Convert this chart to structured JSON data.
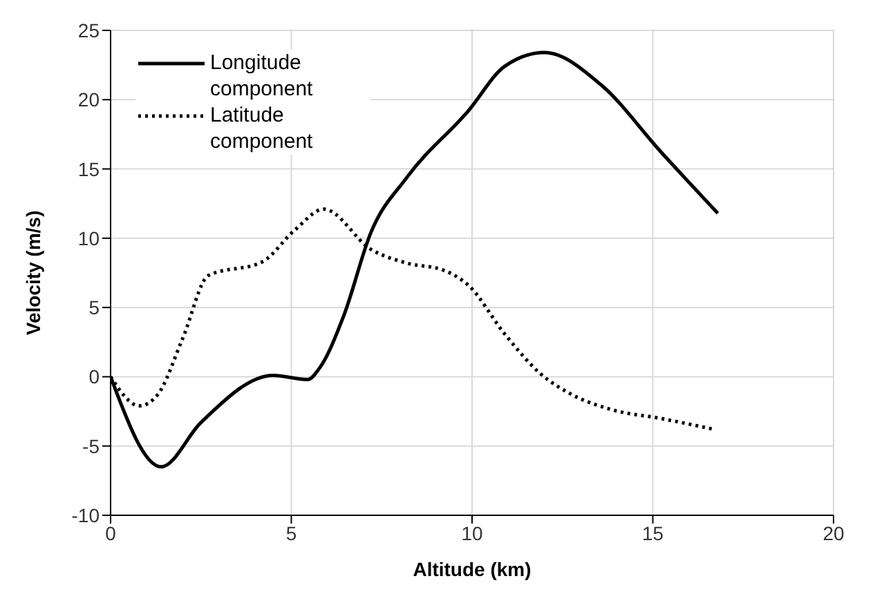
{
  "chart_data": {
    "type": "line",
    "xlabel": "Altitude (km)",
    "ylabel": "Velocity (m/s)",
    "xlim": [
      0,
      20
    ],
    "xticks": [
      0,
      5,
      10,
      15,
      20
    ],
    "ylim": [
      -10,
      25
    ],
    "yticks": [
      -10,
      -5,
      0,
      5,
      10,
      15,
      20,
      25
    ],
    "grid": true,
    "legend": "top left",
    "marker": "none",
    "series": [
      {
        "name": "Longitude component",
        "color": "#000000",
        "line_style": "solid",
        "x": [
          0,
          1.4,
          2.5,
          4.5,
          5.45,
          5.8,
          6.45,
          7.2,
          8.2,
          9.9,
          10.9,
          12.0,
          13.6,
          15.2,
          16.8
        ],
        "values": [
          0,
          -6.5,
          -3.3,
          0.1,
          -0.2,
          0.7,
          4.4,
          10.4,
          14.4,
          19.2,
          22.4,
          23.4,
          21.0,
          16.3,
          11.8
        ]
      },
      {
        "name": "Latitude component",
        "color": "#000000",
        "line_style": "dotted",
        "x": [
          0,
          0.8,
          1.3,
          2.0,
          2.7,
          4.2,
          5.1,
          5.9,
          7.2,
          8.2,
          9.2,
          9.9,
          10.9,
          11.9,
          12.7,
          13.9,
          15.2,
          16.7
        ],
        "values": [
          0,
          -2.1,
          -1.3,
          2.8,
          7.3,
          8.3,
          10.6,
          12.1,
          9.2,
          8.2,
          7.7,
          6.6,
          3.1,
          0.2,
          -1.2,
          -2.4,
          -3.0,
          -3.8
        ]
      }
    ]
  }
}
